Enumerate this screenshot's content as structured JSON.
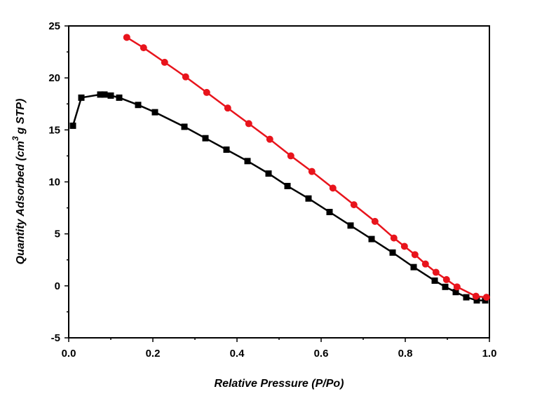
{
  "chart_data": {
    "type": "line",
    "title": "",
    "xlabel": "Relative Pressure (P/Po)",
    "ylabel_parts": {
      "pre": "Quantity Adsorbed (cm",
      "sup": "3",
      "post": "g STP)"
    },
    "xlim": [
      0.0,
      1.0
    ],
    "ylim": [
      -5,
      25
    ],
    "xticks": [
      0.0,
      0.2,
      0.4,
      0.6,
      0.8,
      1.0
    ],
    "xtick_labels": [
      "0.0",
      "0.2",
      "0.4",
      "0.6",
      "0.8",
      "1.0"
    ],
    "yticks": [
      -5,
      0,
      5,
      10,
      15,
      20,
      25
    ],
    "ytick_labels": [
      "-5",
      "0",
      "5",
      "10",
      "15",
      "20",
      "25"
    ],
    "grid": false,
    "legend": "none",
    "series": [
      {
        "color": "#000000",
        "marker": "square",
        "x": [
          0.01,
          0.03,
          0.075,
          0.085,
          0.1,
          0.12,
          0.165,
          0.205,
          0.275,
          0.325,
          0.375,
          0.425,
          0.475,
          0.52,
          0.57,
          0.62,
          0.67,
          0.72,
          0.77,
          0.82,
          0.87,
          0.895,
          0.92,
          0.945,
          0.97,
          0.99
        ],
        "y": [
          15.4,
          18.1,
          18.4,
          18.4,
          18.3,
          18.1,
          17.4,
          16.7,
          15.3,
          14.2,
          13.1,
          12.0,
          10.8,
          9.6,
          8.4,
          7.1,
          5.8,
          4.5,
          3.2,
          1.8,
          0.5,
          -0.1,
          -0.6,
          -1.1,
          -1.4,
          -1.4
        ]
      },
      {
        "color": "#e8141c",
        "marker": "circle",
        "x": [
          0.138,
          0.178,
          0.228,
          0.278,
          0.328,
          0.378,
          0.428,
          0.478,
          0.528,
          0.578,
          0.628,
          0.678,
          0.728,
          0.773,
          0.798,
          0.823,
          0.848,
          0.873,
          0.898,
          0.923,
          0.968,
          0.993
        ],
        "y": [
          23.9,
          22.9,
          21.5,
          20.1,
          18.6,
          17.1,
          15.6,
          14.1,
          12.5,
          11.0,
          9.4,
          7.8,
          6.2,
          4.6,
          3.8,
          3.0,
          2.1,
          1.3,
          0.6,
          -0.1,
          -1.0,
          -1.1
        ]
      }
    ]
  }
}
